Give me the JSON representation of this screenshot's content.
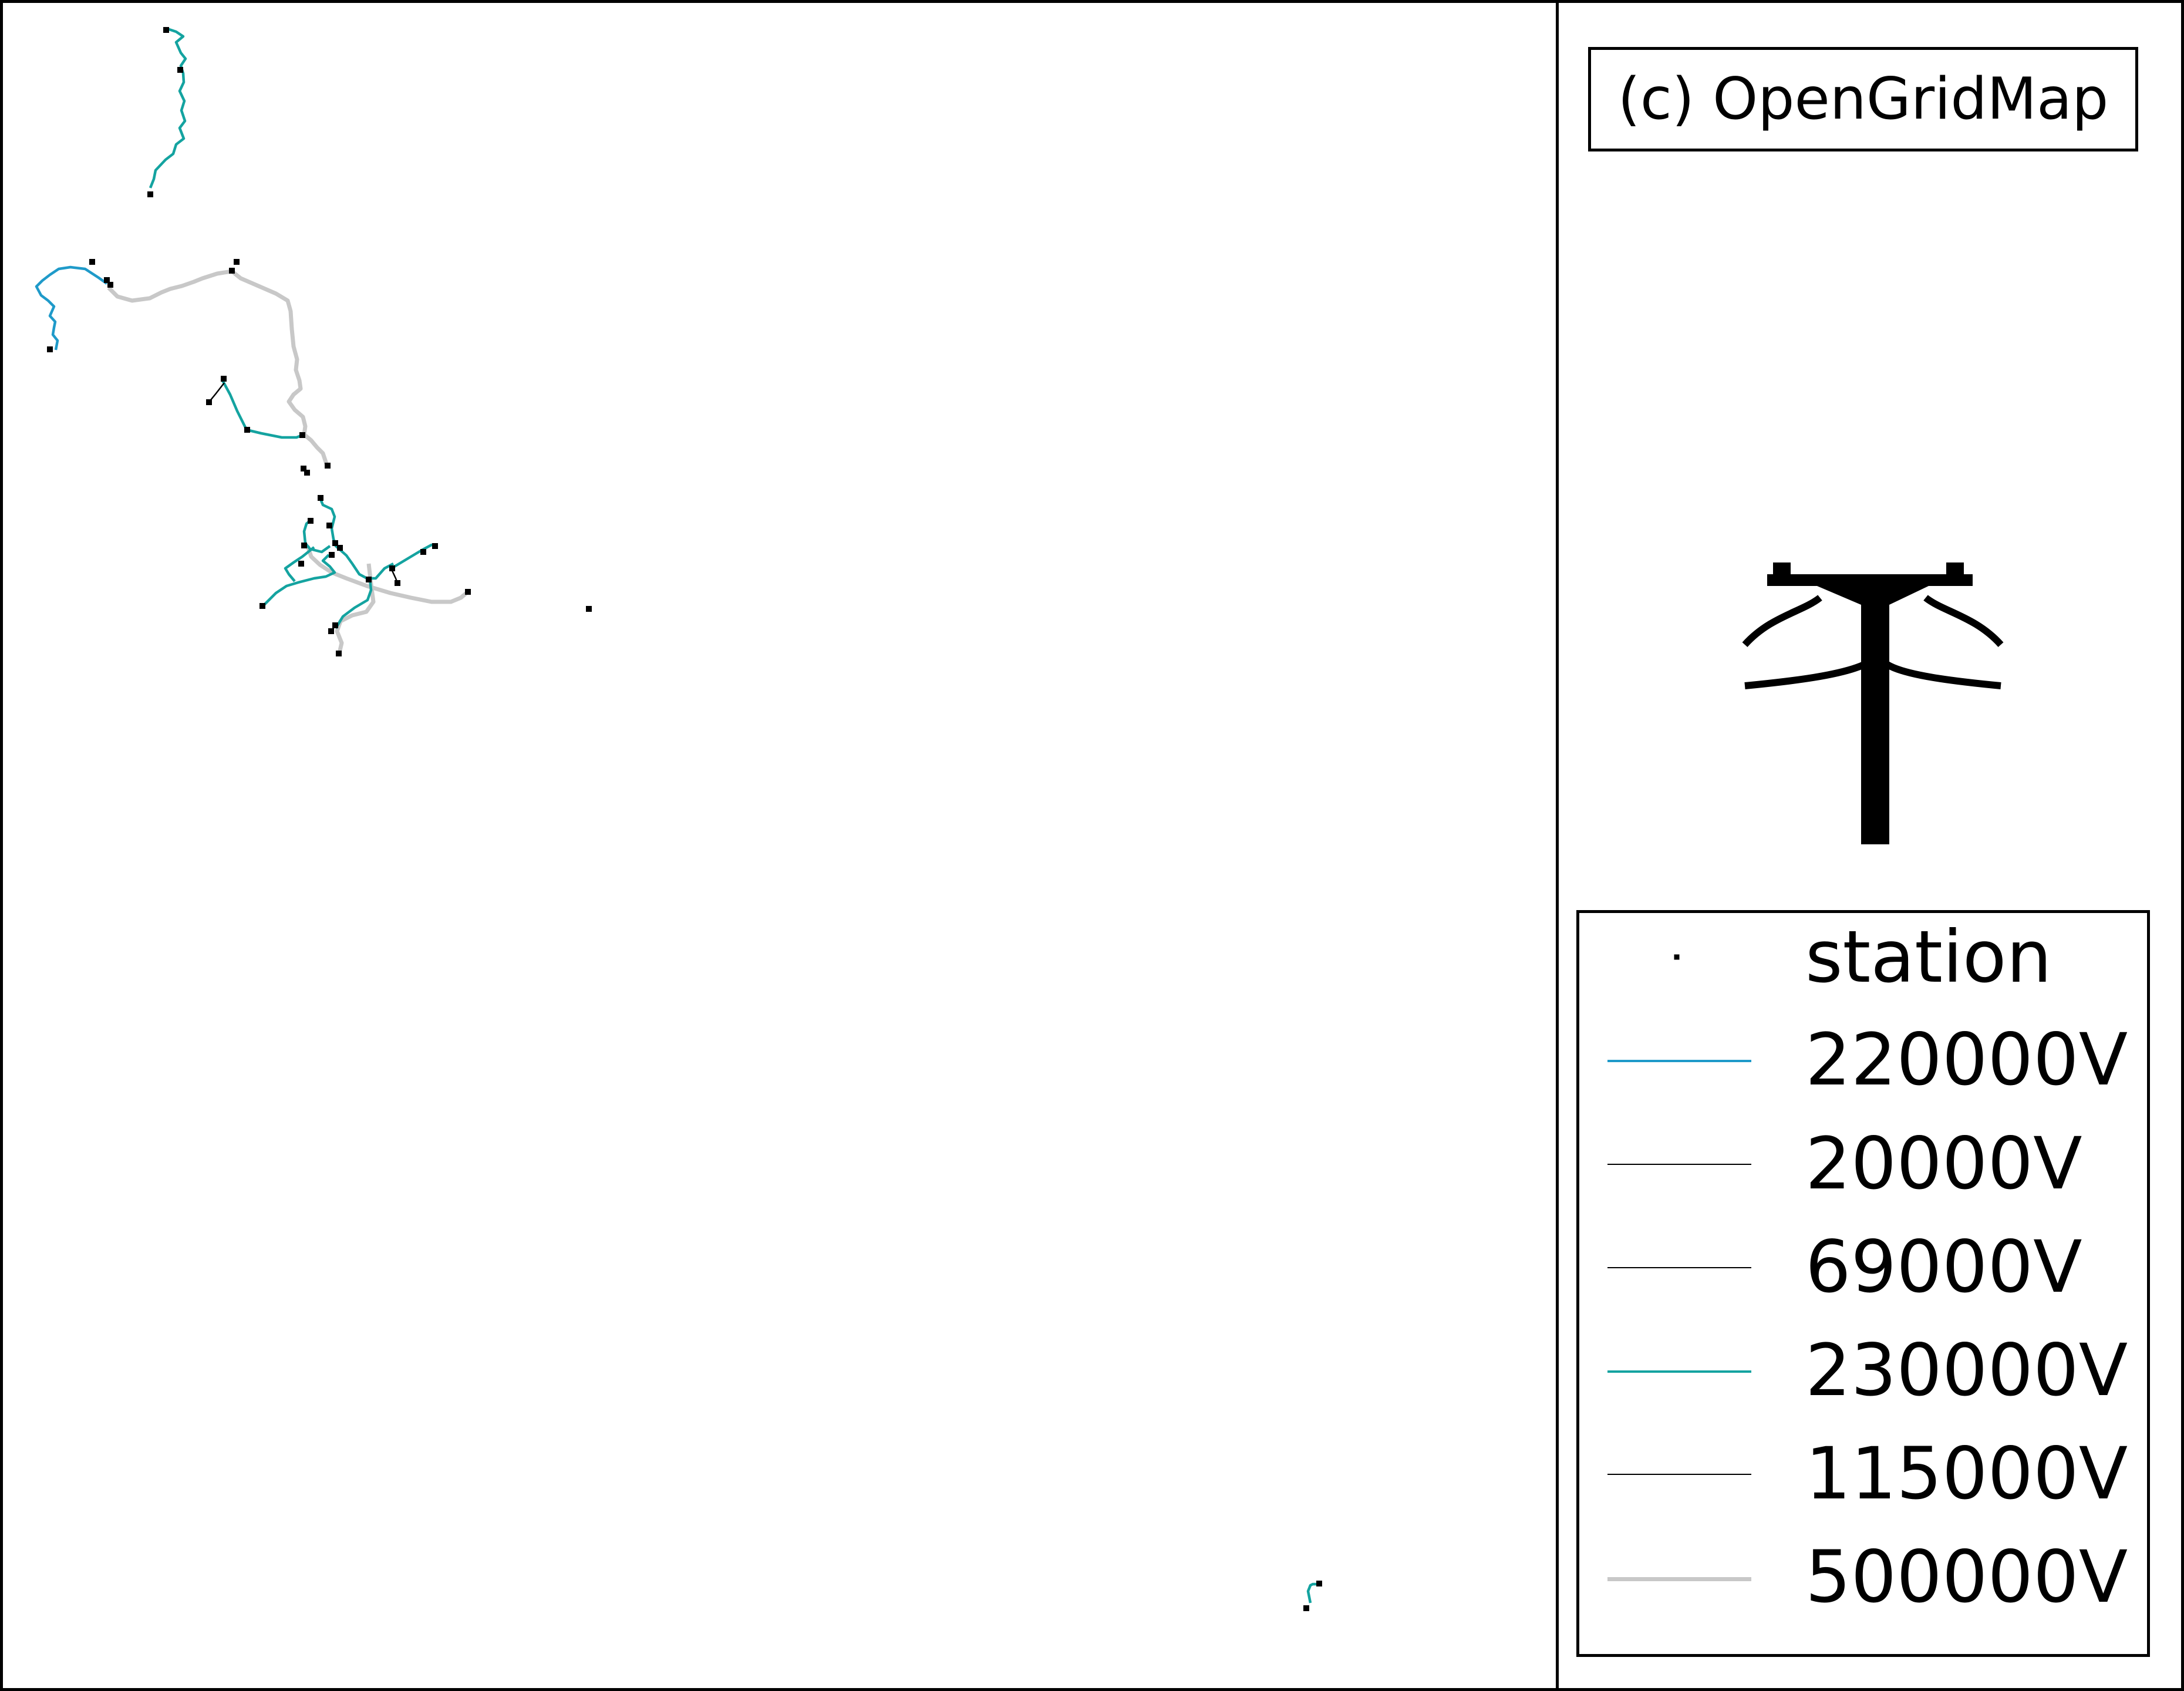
{
  "credit": "(c) OpenGridMap",
  "icons": {
    "logo": "power-pole-icon"
  },
  "legend": {
    "items": [
      {
        "label": "station",
        "type": "point",
        "color": "#000000"
      },
      {
        "label": "220000V",
        "type": "line",
        "color": "#1f9ac9"
      },
      {
        "label": "20000V",
        "type": "line",
        "color": "#000000"
      },
      {
        "label": "69000V",
        "type": "line",
        "color": "#000000"
      },
      {
        "label": "230000V",
        "type": "line",
        "color": "#14a3a0"
      },
      {
        "label": "115000V",
        "type": "line",
        "color": "#000000"
      },
      {
        "label": "500000V",
        "type": "line",
        "color": "#c8c8c8"
      }
    ]
  },
  "colors": {
    "v220000": "#1f9ac9",
    "v230000": "#14a3a0",
    "v500000": "#c8c8c8",
    "station": "#000000",
    "frame": "#000000"
  }
}
